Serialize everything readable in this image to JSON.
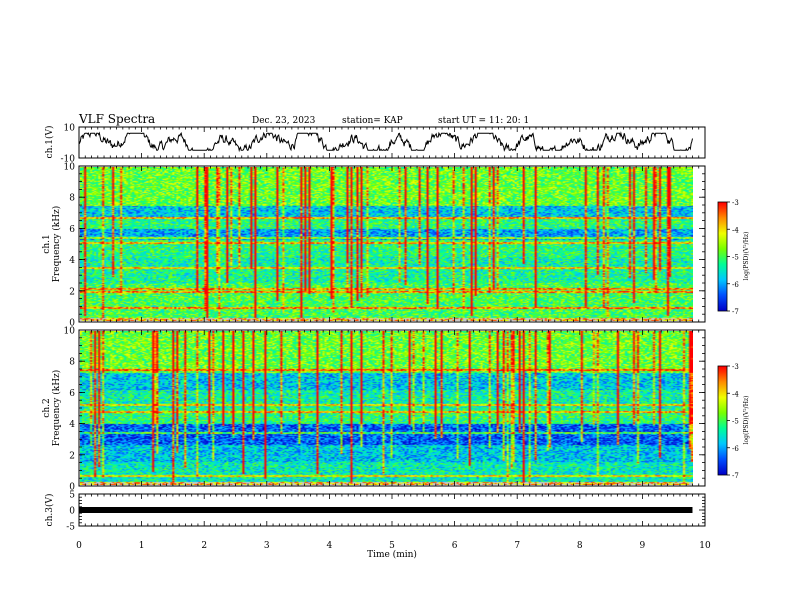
{
  "header": {
    "title": "VLF Spectra",
    "date": "Dec. 23, 2023",
    "station": "station= KAP",
    "start_label": "start",
    "ut": "UT =  11: 20: 1"
  },
  "colors": {
    "frame": "#000000",
    "colormap": [
      "#0000c8",
      "#0050ff",
      "#00c8ff",
      "#00ff96",
      "#78ff00",
      "#f0ff00",
      "#ff8c00",
      "#ff0000",
      "#c8c8c8",
      "#ffffff"
    ]
  },
  "chart_data": [
    {
      "type": "line",
      "panel": "ch1-waveform",
      "ylabel": "ch.1(V)",
      "ylim": [
        -10,
        10
      ],
      "y_ticks": [
        "10",
        "-10"
      ],
      "x_range_min": [
        0,
        10
      ],
      "description_of_trace": "noisy voltage signal oscillating roughly between -3 and +4 V"
    },
    {
      "type": "heatmap",
      "panel": "ch1-spectrogram",
      "ylabel_line1": "ch.1",
      "ylabel_line2": "Frequency (kHz)",
      "ylim": [
        0,
        10
      ],
      "y_ticks": [
        "0",
        "2",
        "4",
        "6",
        "8",
        "10"
      ],
      "data_end_min": 9.8,
      "colorbar": {
        "range": [
          -7,
          -3
        ],
        "ticks": [
          "-3",
          "-4",
          "-5",
          "-6",
          "-7"
        ],
        "label": "log(PSD)(V²/Hz)"
      }
    },
    {
      "type": "heatmap",
      "panel": "ch2-spectrogram",
      "ylabel_line1": "ch.2",
      "ylabel_line2": "Frequency (kHz)",
      "ylim": [
        0,
        10
      ],
      "y_ticks": [
        "0",
        "2",
        "4",
        "6",
        "8",
        "10"
      ],
      "data_end_min": 9.8,
      "colorbar": {
        "range": [
          -7,
          -3
        ],
        "ticks": [
          "-3",
          "-4",
          "-5",
          "-6",
          "-7"
        ],
        "label": "log(PSD)(V²/Hz)"
      }
    },
    {
      "type": "line",
      "panel": "ch3-waveform",
      "ylabel": "ch.3(V)",
      "ylim": [
        -5,
        5
      ],
      "y_ticks": [
        "5",
        "0",
        "-5"
      ],
      "trace_level_v": 0,
      "xlabel": "Time (min)",
      "x_ticks": [
        "0",
        "1",
        "2",
        "3",
        "4",
        "5",
        "6",
        "7",
        "8",
        "9",
        "10"
      ],
      "xlim": [
        0,
        10
      ]
    }
  ]
}
